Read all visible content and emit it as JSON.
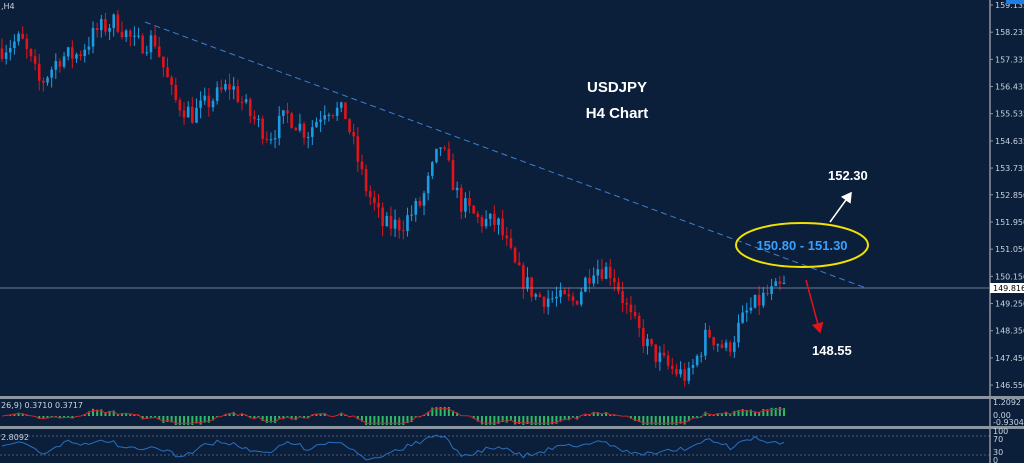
{
  "header": {
    "timeframe_label": ",H4"
  },
  "annotations": {
    "title_line1": "USDJPY",
    "title_line2": "H4 Chart",
    "resistance_zone": "150.80 - 151.30",
    "upside_target": "152.30",
    "downside_target": "148.55"
  },
  "colors": {
    "background": "#0b1f3a",
    "bull": "#1e9be0",
    "bear": "#e0141a",
    "zone_ellipse": "#f2e200",
    "zone_text": "#3aa0ff",
    "trendline": "#3f7fd0",
    "up_arrow": "#ffffff",
    "down_arrow": "#e0141a",
    "macd_hist": "#2fb865",
    "macd_signal": "#d0202a",
    "rsi_line": "#2a6fc0"
  },
  "chart_data": [
    {
      "type": "candlestick",
      "symbol": "USDJPY",
      "timeframe": "H4",
      "price_axis_ticks": [
        "159.135",
        "158.235",
        "157.335",
        "156.435",
        "155.535",
        "154.635",
        "153.735",
        "152.850",
        "151.950",
        "151.050",
        "150.150",
        "149.250",
        "148.350",
        "147.450",
        "146.550"
      ],
      "current_price": "149.816",
      "ylim": [
        146.3,
        159.3
      ],
      "approx_close_path": [
        157.7,
        158.0,
        156.5,
        157.4,
        157.5,
        158.3,
        158.6,
        157.8,
        158.0,
        156.0,
        155.5,
        156.0,
        156.5,
        155.5,
        154.8,
        155.5,
        154.9,
        155.8,
        155.5,
        153.2,
        151.8,
        151.9,
        152.6,
        154.5,
        152.6,
        152.0,
        151.9,
        150.3,
        149.5,
        149.4,
        149.3,
        150.5,
        150.3,
        148.7,
        147.7,
        147.1,
        146.8,
        148.3,
        147.7,
        148.9,
        149.5,
        149.8
      ]
    },
    {
      "type": "bar",
      "indicator": "MACD",
      "label": "26,9) 0.3710 0.3717",
      "axis_ticks": [
        "1.2092",
        "0.00",
        "-0.9304"
      ]
    },
    {
      "type": "line",
      "indicator": "RSI",
      "label": "2.8092",
      "axis_ticks": [
        "100",
        "70",
        "30",
        "0"
      ]
    }
  ]
}
